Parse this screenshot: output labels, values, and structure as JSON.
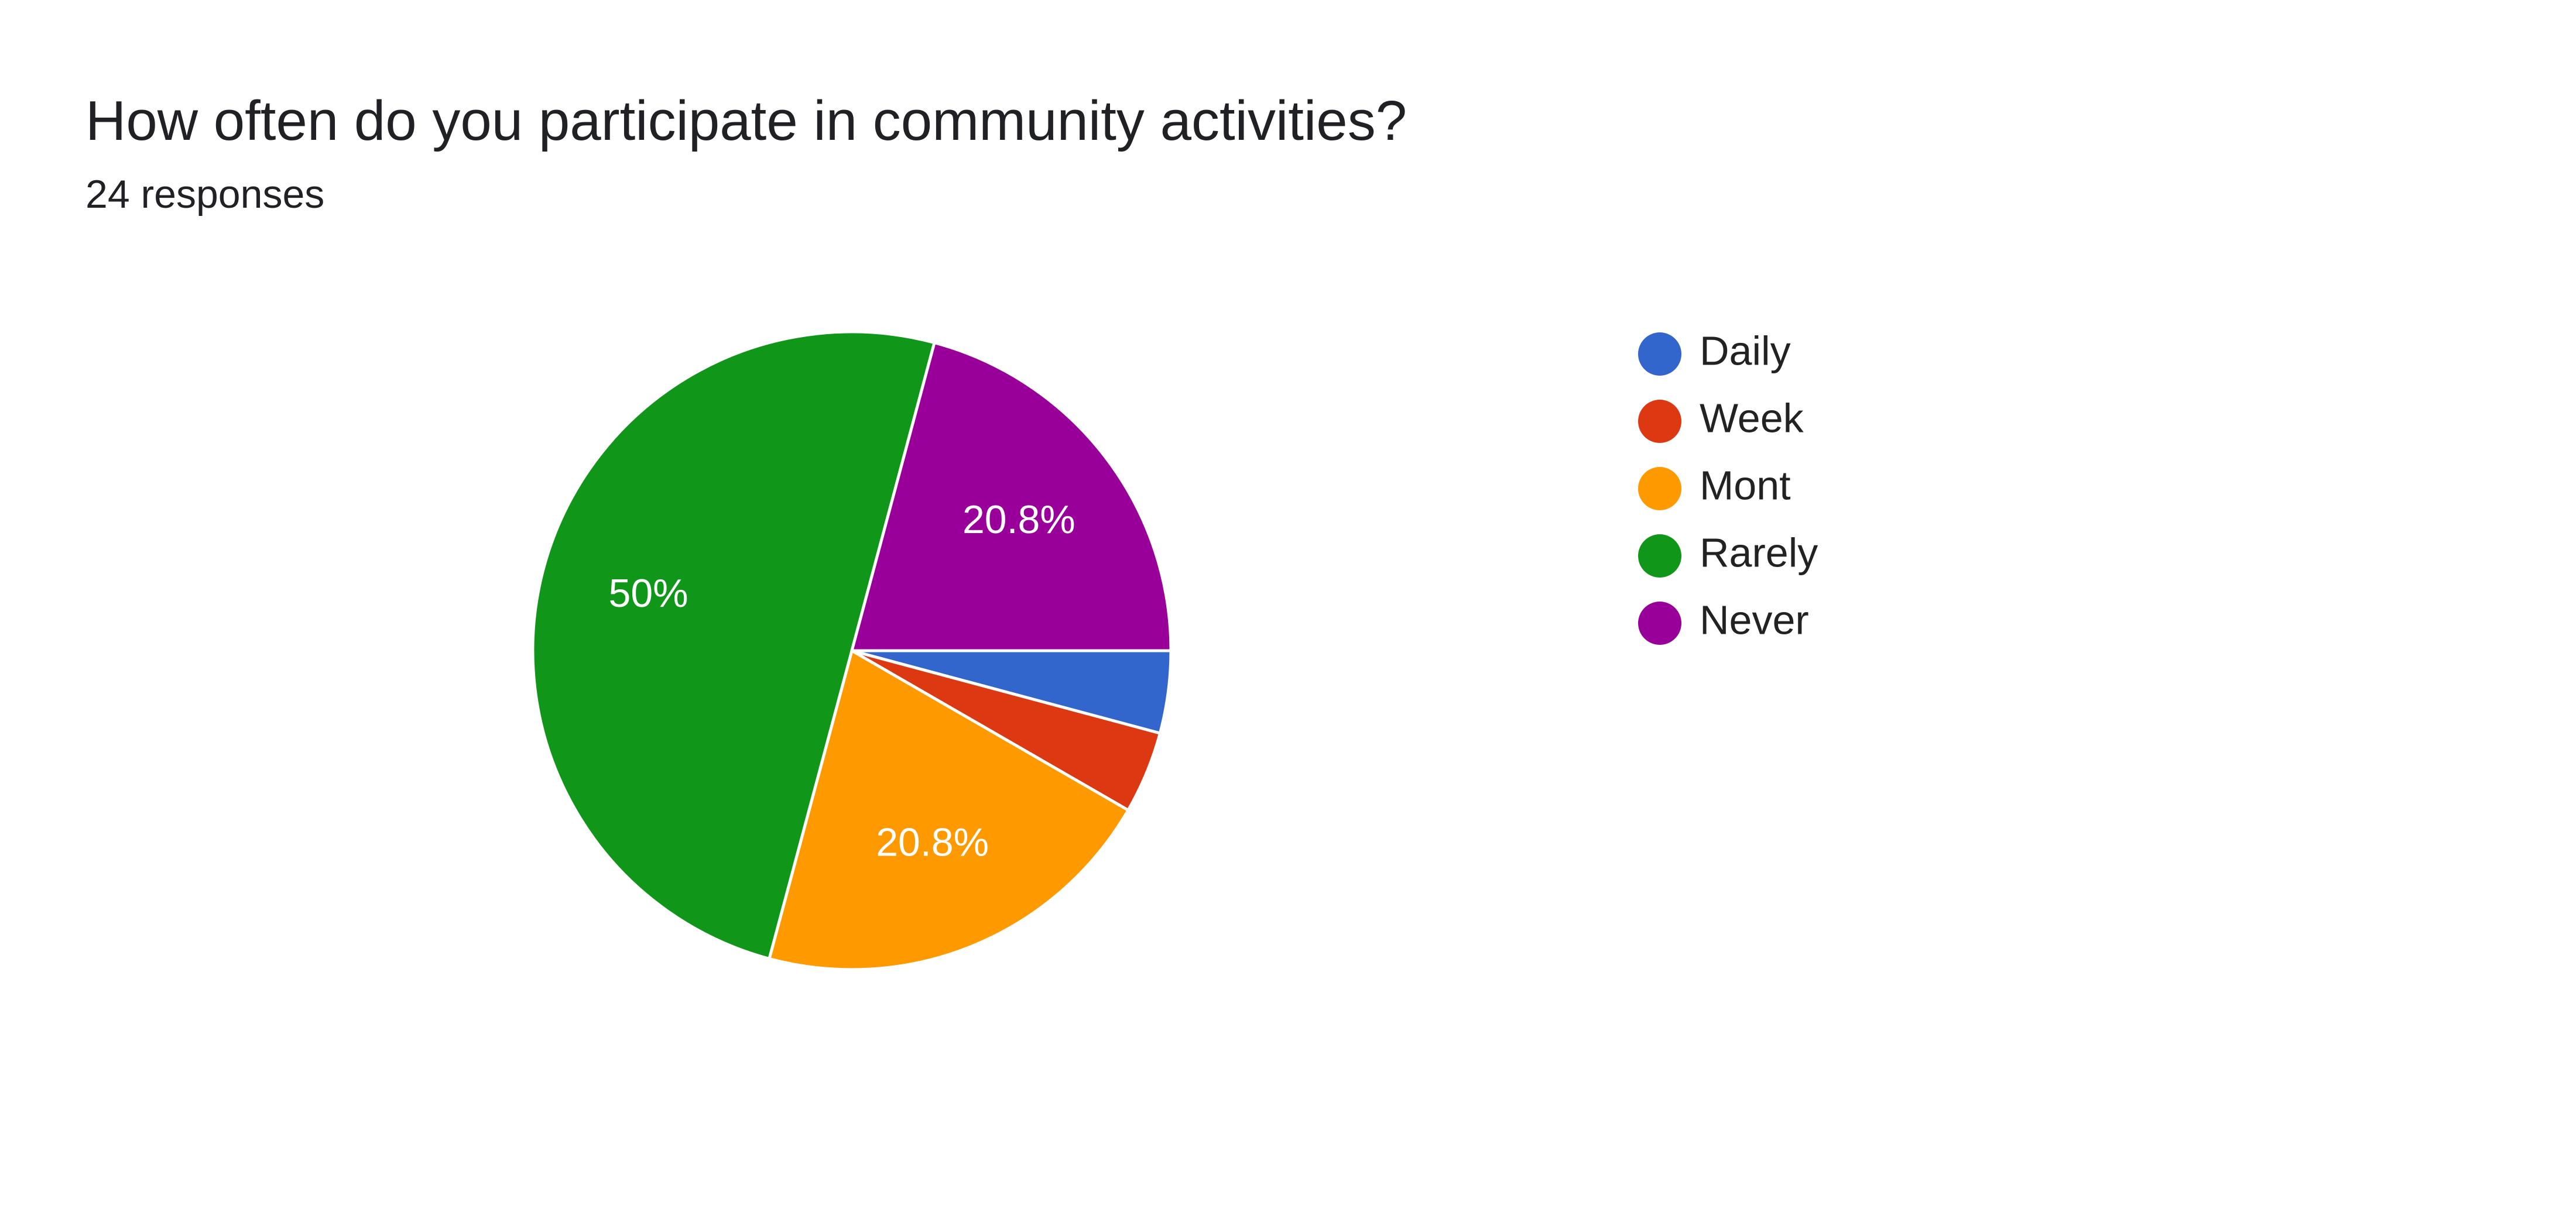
{
  "card": {
    "title": "How often do you participate in community activities?",
    "subtitle": "24 responses"
  },
  "chart_data": {
    "type": "pie",
    "title": "How often do you participate in community activities?",
    "subtitle": "24 responses",
    "total_responses": 24,
    "categories": [
      "Daily",
      "Week",
      "Mont",
      "Rarely",
      "Never"
    ],
    "values": [
      1,
      1,
      5,
      12,
      5
    ],
    "percentages": [
      4.2,
      4.2,
      20.8,
      50,
      20.8
    ],
    "slice_labels": [
      "",
      "",
      "20.8%",
      "50%",
      "20.8%"
    ],
    "colors": [
      "#3366cc",
      "#dc3912",
      "#ff9900",
      "#109618",
      "#990099"
    ],
    "start": "3 o'clock, clockwise",
    "legend_position": "right"
  }
}
